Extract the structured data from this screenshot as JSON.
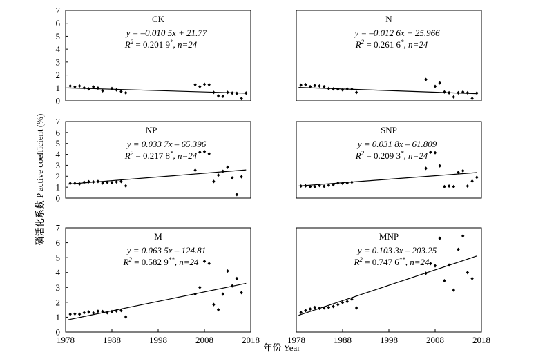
{
  "figure": {
    "xlabel": "年份 Year",
    "ylabel": "磷活化系数 P active coefficient (%)"
  },
  "chart_data": [
    {
      "type": "scatter",
      "title": "CK",
      "equation": "y = –0.010 5x + 21.77",
      "r2": "R2 = 0.201 9*, n=24",
      "xlim": [
        1978,
        2018
      ],
      "ylim": [
        0,
        7
      ],
      "xticks": [],
      "yticks": [
        0,
        1,
        2,
        3,
        4,
        5,
        6,
        7
      ],
      "trend": {
        "slope": -0.0105,
        "intercept": 21.77
      },
      "points": [
        [
          1979,
          1.15
        ],
        [
          1980,
          1.08
        ],
        [
          1981,
          1.15
        ],
        [
          1982,
          1.0
        ],
        [
          1983,
          0.92
        ],
        [
          1984,
          1.08
        ],
        [
          1985,
          0.98
        ],
        [
          1986,
          0.78
        ],
        [
          1988,
          0.95
        ],
        [
          1989,
          0.85
        ],
        [
          1990,
          0.72
        ],
        [
          1991,
          0.62
        ],
        [
          2006,
          1.25
        ],
        [
          2007,
          1.1
        ],
        [
          2008,
          1.28
        ],
        [
          2009,
          1.25
        ],
        [
          2010,
          0.65
        ],
        [
          2011,
          0.38
        ],
        [
          2012,
          0.35
        ],
        [
          2013,
          0.65
        ],
        [
          2014,
          0.6
        ],
        [
          2015,
          0.58
        ],
        [
          2016,
          0.18
        ],
        [
          2017,
          0.6
        ]
      ]
    },
    {
      "type": "scatter",
      "title": "N",
      "equation": "y = –0.012 6x + 25.966",
      "r2": "R2 = 0.261 6*, n=24",
      "xlim": [
        1978,
        2018
      ],
      "ylim": [
        0,
        7
      ],
      "xticks": [],
      "yticks": [],
      "trend": {
        "slope": -0.0126,
        "intercept": 25.966
      },
      "points": [
        [
          1979,
          1.22
        ],
        [
          1980,
          1.25
        ],
        [
          1981,
          1.1
        ],
        [
          1982,
          1.18
        ],
        [
          1983,
          1.15
        ],
        [
          1984,
          1.1
        ],
        [
          1985,
          0.95
        ],
        [
          1986,
          0.92
        ],
        [
          1987,
          0.9
        ],
        [
          1988,
          0.85
        ],
        [
          1989,
          0.92
        ],
        [
          1990,
          0.9
        ],
        [
          1991,
          0.65
        ],
        [
          2006,
          1.65
        ],
        [
          2008,
          1.12
        ],
        [
          2009,
          1.38
        ],
        [
          2010,
          0.68
        ],
        [
          2011,
          0.62
        ],
        [
          2012,
          0.3
        ],
        [
          2013,
          0.62
        ],
        [
          2014,
          0.68
        ],
        [
          2015,
          0.62
        ],
        [
          2016,
          0.18
        ],
        [
          2017,
          0.6
        ]
      ]
    },
    {
      "type": "scatter",
      "title": "NP",
      "equation": "y = 0.033 7x – 65.396",
      "r2": "R2 = 0.217 8*, n=24",
      "xlim": [
        1978,
        2018
      ],
      "ylim": [
        0,
        7
      ],
      "xticks": [],
      "yticks": [
        0,
        1,
        2,
        3,
        4,
        5,
        6,
        7
      ],
      "trend": {
        "slope": 0.0337,
        "intercept": -65.396
      },
      "points": [
        [
          1979,
          1.35
        ],
        [
          1980,
          1.35
        ],
        [
          1981,
          1.3
        ],
        [
          1982,
          1.45
        ],
        [
          1983,
          1.5
        ],
        [
          1984,
          1.48
        ],
        [
          1985,
          1.52
        ],
        [
          1986,
          1.38
        ],
        [
          1987,
          1.45
        ],
        [
          1988,
          1.42
        ],
        [
          1989,
          1.48
        ],
        [
          1990,
          1.52
        ],
        [
          1991,
          1.12
        ],
        [
          2006,
          2.55
        ],
        [
          2007,
          4.2
        ],
        [
          2008,
          4.25
        ],
        [
          2009,
          4.05
        ],
        [
          2010,
          1.52
        ],
        [
          2011,
          2.1
        ],
        [
          2012,
          2.45
        ],
        [
          2013,
          2.82
        ],
        [
          2014,
          1.85
        ],
        [
          2015,
          0.32
        ],
        [
          2016,
          1.95
        ]
      ]
    },
    {
      "type": "scatter",
      "title": "SNP",
      "equation": "y = 0.031 8x – 61.809",
      "r2": "R2 = 0.209 3*, n=24",
      "xlim": [
        1978,
        2018
      ],
      "ylim": [
        0,
        7
      ],
      "xticks": [],
      "yticks": [],
      "trend": {
        "slope": 0.0318,
        "intercept": -61.809
      },
      "points": [
        [
          1979,
          1.1
        ],
        [
          1980,
          1.12
        ],
        [
          1981,
          1.05
        ],
        [
          1982,
          1.05
        ],
        [
          1983,
          1.15
        ],
        [
          1984,
          1.08
        ],
        [
          1985,
          1.18
        ],
        [
          1986,
          1.22
        ],
        [
          1987,
          1.38
        ],
        [
          1988,
          1.35
        ],
        [
          1989,
          1.38
        ],
        [
          1990,
          1.45
        ],
        [
          2006,
          2.72
        ],
        [
          2007,
          4.2
        ],
        [
          2008,
          4.15
        ],
        [
          2009,
          2.95
        ],
        [
          2010,
          1.05
        ],
        [
          2011,
          1.1
        ],
        [
          2012,
          1.05
        ],
        [
          2013,
          2.35
        ],
        [
          2014,
          2.5
        ],
        [
          2015,
          1.1
        ],
        [
          2016,
          1.55
        ],
        [
          2017,
          1.9
        ]
      ]
    },
    {
      "type": "scatter",
      "title": "M",
      "equation": "y = 0.063 5x – 124.81",
      "r2": "R2 = 0.582 9**, n=24",
      "xlim": [
        1978,
        2018
      ],
      "ylim": [
        0,
        7
      ],
      "xticks": [
        1978,
        1988,
        1998,
        2008,
        2018
      ],
      "yticks": [
        0,
        1,
        2,
        3,
        4,
        5,
        6,
        7
      ],
      "trend": {
        "slope": 0.0635,
        "intercept": -124.81
      },
      "points": [
        [
          1979,
          1.2
        ],
        [
          1980,
          1.22
        ],
        [
          1981,
          1.2
        ],
        [
          1982,
          1.3
        ],
        [
          1983,
          1.35
        ],
        [
          1984,
          1.28
        ],
        [
          1985,
          1.4
        ],
        [
          1986,
          1.38
        ],
        [
          1987,
          1.3
        ],
        [
          1988,
          1.38
        ],
        [
          1989,
          1.42
        ],
        [
          1990,
          1.45
        ],
        [
          1991,
          1.02
        ],
        [
          2006,
          2.55
        ],
        [
          2007,
          3.0
        ],
        [
          2008,
          4.75
        ],
        [
          2009,
          4.6
        ],
        [
          2010,
          1.85
        ],
        [
          2011,
          1.5
        ],
        [
          2012,
          2.55
        ],
        [
          2013,
          4.1
        ],
        [
          2014,
          3.1
        ],
        [
          2015,
          3.6
        ],
        [
          2016,
          2.65
        ]
      ]
    },
    {
      "type": "scatter",
      "title": "MNP",
      "equation": "y = 0.103 3x – 203.25",
      "r2": "R2 = 0.747 6**, n=24",
      "xlim": [
        1978,
        2018
      ],
      "ylim": [
        0,
        7
      ],
      "xticks": [
        1978,
        1988,
        1998,
        2008,
        2018
      ],
      "yticks": [],
      "trend": {
        "slope": 0.1033,
        "intercept": -203.25
      },
      "points": [
        [
          1979,
          1.32
        ],
        [
          1980,
          1.45
        ],
        [
          1981,
          1.55
        ],
        [
          1982,
          1.65
        ],
        [
          1983,
          1.6
        ],
        [
          1984,
          1.62
        ],
        [
          1985,
          1.65
        ],
        [
          1986,
          1.72
        ],
        [
          1987,
          1.85
        ],
        [
          1988,
          1.98
        ],
        [
          1989,
          2.05
        ],
        [
          1990,
          2.2
        ],
        [
          1991,
          1.62
        ],
        [
          2006,
          3.95
        ],
        [
          2007,
          4.6
        ],
        [
          2008,
          4.45
        ],
        [
          2009,
          6.3
        ],
        [
          2010,
          3.45
        ],
        [
          2011,
          4.5
        ],
        [
          2012,
          2.82
        ],
        [
          2013,
          5.55
        ],
        [
          2014,
          6.45
        ],
        [
          2015,
          4.0
        ],
        [
          2016,
          3.6
        ]
      ]
    }
  ]
}
